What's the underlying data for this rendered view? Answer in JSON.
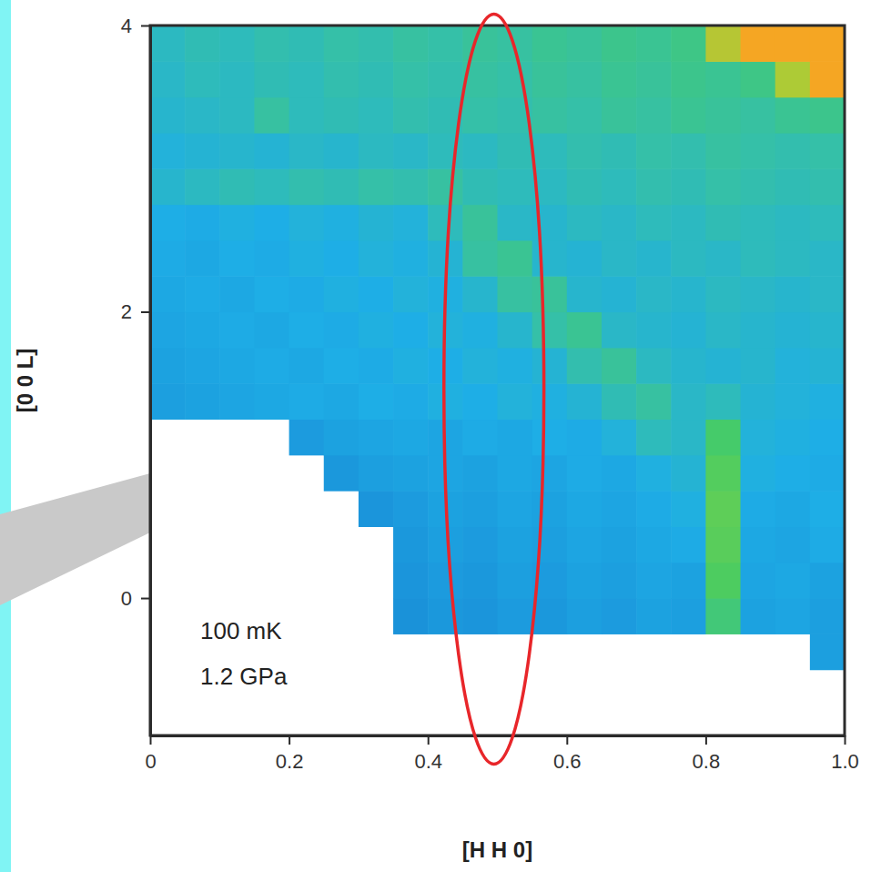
{
  "chart_data": {
    "type": "heatmap",
    "x_label": "[H H 0]",
    "y_label": "[0 0 L]",
    "annotations": [
      "100 mK",
      "1.2 GPa"
    ],
    "xlim": [
      0,
      1
    ],
    "ylim": [
      -0.96,
      4
    ],
    "xticks": [
      0,
      0.2,
      0.4,
      0.6,
      0.8,
      {
        "value": 1,
        "label": "1.0"
      }
    ],
    "yticks": [
      0,
      2,
      4
    ],
    "zlim": [
      0,
      10
    ],
    "x": [
      0.025,
      0.075,
      0.125,
      0.175,
      0.225,
      0.275,
      0.325,
      0.375,
      0.425,
      0.475,
      0.525,
      0.575,
      0.625,
      0.675,
      0.725,
      0.775,
      0.825,
      0.875,
      0.925,
      0.975
    ],
    "y": [
      -0.875,
      -0.625,
      -0.375,
      -0.125,
      0.125,
      0.375,
      0.625,
      0.875,
      1.125,
      1.375,
      1.625,
      1.875,
      2.125,
      2.375,
      2.625,
      2.875,
      3.125,
      3.375,
      3.625,
      3.875
    ],
    "z": [
      [
        null,
        null,
        null,
        null,
        null,
        null,
        null,
        null,
        null,
        null,
        null,
        null,
        null,
        null,
        null,
        null,
        null,
        null,
        null,
        null
      ],
      [
        null,
        null,
        null,
        null,
        null,
        null,
        null,
        null,
        null,
        null,
        null,
        null,
        null,
        null,
        null,
        null,
        null,
        null,
        null,
        null
      ],
      [
        null,
        null,
        null,
        null,
        null,
        null,
        null,
        null,
        null,
        null,
        null,
        null,
        null,
        null,
        null,
        null,
        null,
        null,
        null,
        3.0
      ],
      [
        null,
        null,
        null,
        null,
        null,
        null,
        null,
        2.6,
        2.8,
        2.7,
        2.9,
        2.8,
        3.0,
        2.9,
        3.1,
        3.0,
        5.2,
        3.1,
        3.2,
        3.0
      ],
      [
        null,
        null,
        null,
        null,
        null,
        null,
        null,
        2.7,
        2.9,
        2.8,
        3.0,
        2.9,
        3.1,
        3.0,
        3.2,
        3.1,
        5.6,
        3.2,
        3.3,
        3.1
      ],
      [
        null,
        null,
        null,
        null,
        null,
        null,
        null,
        2.8,
        3.0,
        2.9,
        3.1,
        3.0,
        3.2,
        3.1,
        3.3,
        3.4,
        5.8,
        3.3,
        3.2,
        3.4
      ],
      [
        null,
        null,
        null,
        null,
        null,
        null,
        2.7,
        2.9,
        3.1,
        3.0,
        3.2,
        3.1,
        3.3,
        3.2,
        3.4,
        3.6,
        5.9,
        3.4,
        3.3,
        3.5
      ],
      [
        null,
        null,
        null,
        null,
        null,
        2.8,
        3.0,
        3.1,
        3.2,
        3.1,
        3.3,
        3.2,
        3.4,
        3.3,
        3.6,
        3.8,
        5.7,
        3.6,
        3.5,
        3.4
      ],
      [
        null,
        null,
        null,
        null,
        2.9,
        3.1,
        3.2,
        3.3,
        3.2,
        3.4,
        3.3,
        3.5,
        3.4,
        3.7,
        4.2,
        4.0,
        5.4,
        3.7,
        3.6,
        3.5
      ],
      [
        3.0,
        3.1,
        3.2,
        3.3,
        3.4,
        3.3,
        3.5,
        3.4,
        3.6,
        3.5,
        3.7,
        3.6,
        3.8,
        4.3,
        4.6,
        4.0,
        4.2,
        3.8,
        3.7,
        3.6
      ],
      [
        3.1,
        3.2,
        3.3,
        3.4,
        3.3,
        3.5,
        3.4,
        3.6,
        3.5,
        3.7,
        3.6,
        3.8,
        4.4,
        4.7,
        4.1,
        3.9,
        3.8,
        3.9,
        3.7,
        3.8
      ],
      [
        3.2,
        3.3,
        3.4,
        3.3,
        3.5,
        3.4,
        3.6,
        3.5,
        3.7,
        3.6,
        3.9,
        4.5,
        4.8,
        4.0,
        3.9,
        3.8,
        4.0,
        3.9,
        3.8,
        3.9
      ],
      [
        3.3,
        3.4,
        3.3,
        3.5,
        3.4,
        3.6,
        3.5,
        3.7,
        3.6,
        3.9,
        4.6,
        4.7,
        3.9,
        3.8,
        4.0,
        3.9,
        4.1,
        4.0,
        3.9,
        4.0
      ],
      [
        3.4,
        3.3,
        3.5,
        3.4,
        3.6,
        3.5,
        3.7,
        3.6,
        3.8,
        4.6,
        4.8,
        3.9,
        3.8,
        4.0,
        3.9,
        4.1,
        4.0,
        4.2,
        4.1,
        4.0
      ],
      [
        3.5,
        3.4,
        3.6,
        3.5,
        3.7,
        3.6,
        3.8,
        3.7,
        4.2,
        4.7,
        4.0,
        3.9,
        4.1,
        4.0,
        4.2,
        4.1,
        4.3,
        4.2,
        4.1,
        4.2
      ],
      [
        3.9,
        4.1,
        4.3,
        4.2,
        4.4,
        4.3,
        4.5,
        4.4,
        4.6,
        4.3,
        4.2,
        4.1,
        4.3,
        4.2,
        4.4,
        4.3,
        4.5,
        4.4,
        4.3,
        4.4
      ],
      [
        3.7,
        3.8,
        3.9,
        3.8,
        4.0,
        3.9,
        4.1,
        4.0,
        4.2,
        4.1,
        4.3,
        4.2,
        4.4,
        4.3,
        4.5,
        4.4,
        4.6,
        4.5,
        4.4,
        4.5
      ],
      [
        3.9,
        4.0,
        4.1,
        4.6,
        4.2,
        4.3,
        4.2,
        4.4,
        4.3,
        4.5,
        4.4,
        4.6,
        4.5,
        4.7,
        4.6,
        4.8,
        4.7,
        4.6,
        4.8,
        4.9
      ],
      [
        4.0,
        4.2,
        4.1,
        4.3,
        4.2,
        4.4,
        4.3,
        4.5,
        4.4,
        4.6,
        4.5,
        4.7,
        4.6,
        4.8,
        4.7,
        4.9,
        4.8,
        5.0,
        7.5,
        10.0
      ],
      [
        4.1,
        4.3,
        4.2,
        4.4,
        4.3,
        4.5,
        4.4,
        4.6,
        4.5,
        4.7,
        4.6,
        4.8,
        4.7,
        4.9,
        4.8,
        5.0,
        7.8,
        10.0,
        10.0,
        10.0
      ]
    ],
    "ellipse": {
      "cx": 0.495,
      "cy": 1.46,
      "rx": 0.072,
      "ry": 2.62,
      "color": "#e8262a"
    }
  }
}
